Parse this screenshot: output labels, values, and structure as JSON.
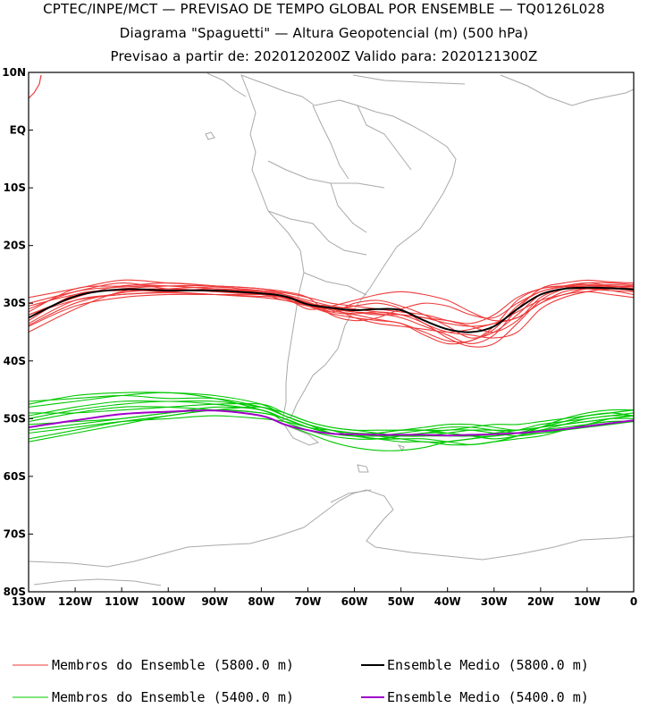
{
  "header": {
    "line1": "CPTEC/INPE/MCT — PREVISAO DE TEMPO GLOBAL POR ENSEMBLE — TQ0126L028",
    "line2": "Diagrama \"Spaguetti\" — Altura Geopotencial (m) (500 hPa)",
    "line3": "Previsao a partir de: 2020120200Z  Valido para: 2020121300Z"
  },
  "chart_data": {
    "type": "line",
    "title": "Diagrama Spaguetti — Altura Geopotencial (m) (500 hPa)",
    "x_axis": {
      "range": [
        -130,
        0
      ],
      "ticks": [
        -130,
        -120,
        -110,
        -100,
        -90,
        -80,
        -70,
        -60,
        -50,
        -40,
        -30,
        -20,
        -10,
        0
      ],
      "tick_labels": [
        "130W",
        "120W",
        "110W",
        "100W",
        "90W",
        "80W",
        "70W",
        "60W",
        "50W",
        "40W",
        "30W",
        "20W",
        "10W",
        "0"
      ]
    },
    "y_axis": {
      "range": [
        -80,
        10
      ],
      "ticks": [
        10,
        0,
        -10,
        -20,
        -30,
        -40,
        -50,
        -60,
        -70,
        -80
      ],
      "tick_labels": [
        "10N",
        "EQ",
        "10S",
        "20S",
        "30S",
        "40S",
        "50S",
        "60S",
        "70S",
        "80S"
      ]
    },
    "x": [
      -130,
      -120,
      -110,
      -100,
      -90,
      -80,
      -75,
      -70,
      -65,
      -60,
      -55,
      -50,
      -45,
      -40,
      -35,
      -30,
      -25,
      -20,
      -15,
      -10,
      -5,
      0
    ],
    "series": [
      {
        "name": "Ensemble Medio (5800.0 m)",
        "color": "#000000",
        "values": [
          -32.5,
          -28.8,
          -27.6,
          -27.8,
          -27.8,
          -28.3,
          -28.8,
          -30.2,
          -30.8,
          -31.2,
          -31.0,
          -31.2,
          -33.0,
          -34.5,
          -35.0,
          -34.0,
          -31.0,
          -28.5,
          -27.5,
          -27.3,
          -27.4,
          -27.6
        ]
      },
      {
        "name": "Ensemble Medio (5400.0 m)",
        "color": "#a000c8",
        "values": [
          -51.5,
          -50.3,
          -49.2,
          -48.8,
          -48.6,
          -49.5,
          -51.0,
          -52.0,
          -52.6,
          -52.7,
          -52.8,
          -52.8,
          -52.8,
          -52.9,
          -52.8,
          -52.7,
          -52.5,
          -52.2,
          -51.8,
          -51.3,
          -50.8,
          -50.3
        ]
      }
    ],
    "members_5800": [
      [
        -30.0,
        -28.0,
        -26.5,
        -27.5,
        -27.8,
        -28.5,
        -29.5,
        -30.0,
        -31.0,
        -31.5,
        -31.8,
        -32.5,
        -34.0,
        -35.5,
        -37.0,
        -35.5,
        -31.0,
        -27.5,
        -26.5,
        -26.0,
        -26.3,
        -26.5
      ],
      [
        -33.5,
        -29.5,
        -28.5,
        -28.2,
        -28.5,
        -28.8,
        -29.0,
        -30.0,
        -31.5,
        -32.0,
        -32.8,
        -33.5,
        -35.0,
        -36.5,
        -36.5,
        -34.0,
        -29.5,
        -27.5,
        -27.0,
        -27.5,
        -27.8,
        -28.0
      ],
      [
        -31.5,
        -27.5,
        -27.0,
        -26.5,
        -27.0,
        -27.5,
        -28.5,
        -30.5,
        -30.8,
        -32.5,
        -33.5,
        -34.0,
        -34.5,
        -35.0,
        -34.5,
        -33.5,
        -32.5,
        -30.0,
        -28.5,
        -28.0,
        -28.5,
        -29.0
      ],
      [
        -35.0,
        -31.0,
        -28.0,
        -27.5,
        -28.0,
        -28.5,
        -29.0,
        -30.2,
        -31.5,
        -30.0,
        -29.5,
        -30.5,
        -32.0,
        -34.0,
        -36.0,
        -35.0,
        -32.0,
        -28.5,
        -27.5,
        -27.0,
        -26.8,
        -27.0
      ],
      [
        -29.0,
        -27.5,
        -26.0,
        -26.5,
        -27.0,
        -28.0,
        -28.5,
        -29.5,
        -30.5,
        -31.5,
        -32.0,
        -32.0,
        -32.5,
        -33.5,
        -34.0,
        -33.5,
        -31.5,
        -29.5,
        -28.5,
        -27.5,
        -27.8,
        -28.5
      ],
      [
        -32.0,
        -29.0,
        -27.0,
        -27.0,
        -27.5,
        -28.0,
        -29.0,
        -31.0,
        -30.5,
        -29.5,
        -28.5,
        -28.0,
        -28.5,
        -29.5,
        -31.5,
        -33.0,
        -32.5,
        -30.0,
        -28.0,
        -27.5,
        -27.5,
        -27.5
      ],
      [
        -34.0,
        -30.5,
        -29.0,
        -28.5,
        -28.5,
        -28.5,
        -28.8,
        -29.8,
        -31.2,
        -31.8,
        -31.5,
        -32.0,
        -33.5,
        -36.0,
        -37.5,
        -37.0,
        -33.5,
        -29.5,
        -27.5,
        -26.5,
        -26.5,
        -26.8
      ],
      [
        -30.5,
        -28.5,
        -27.5,
        -27.0,
        -27.0,
        -27.5,
        -28.0,
        -29.0,
        -32.0,
        -33.0,
        -32.5,
        -31.0,
        -30.0,
        -30.5,
        -32.0,
        -32.5,
        -30.0,
        -28.0,
        -27.0,
        -26.5,
        -27.0,
        -27.5
      ],
      [
        -33.0,
        -28.5,
        -27.8,
        -28.0,
        -28.5,
        -29.0,
        -29.5,
        -30.5,
        -31.0,
        -30.5,
        -30.0,
        -31.0,
        -33.5,
        -35.0,
        -35.5,
        -36.0,
        -35.0,
        -31.0,
        -29.0,
        -28.0,
        -27.5,
        -27.8
      ],
      [
        -32.0,
        -29.5,
        -28.5,
        -28.0,
        -27.5,
        -28.0,
        -28.5,
        -30.0,
        -30.5,
        -31.0,
        -31.5,
        -32.0,
        -32.5,
        -33.0,
        -33.5,
        -32.0,
        -29.0,
        -27.5,
        -27.0,
        -26.8,
        -27.0,
        -27.5
      ],
      [
        -31.0,
        -28.0,
        -27.2,
        -27.0,
        -27.5,
        -28.2,
        -29.2,
        -30.5,
        -31.8,
        -32.5,
        -33.0,
        -33.5,
        -35.5,
        -37.0,
        -36.5,
        -34.5,
        -30.5,
        -28.0,
        -27.2,
        -27.0,
        -27.2,
        -27.0
      ],
      [
        -33.8,
        -30.0,
        -28.2,
        -27.5,
        -27.2,
        -27.8,
        -28.2,
        -29.0,
        -30.0,
        -30.5,
        -31.0,
        -31.5,
        -32.0,
        -33.0,
        -34.0,
        -35.0,
        -33.0,
        -29.0,
        -27.5,
        -27.0,
        -27.0,
        -27.2
      ]
    ],
    "members_5400": [
      [
        -53.5,
        -52.0,
        -50.5,
        -49.5,
        -48.5,
        -49.0,
        -50.0,
        -51.5,
        -52.5,
        -53.0,
        -53.5,
        -53.0,
        -52.5,
        -52.5,
        -53.0,
        -53.5,
        -53.0,
        -52.0,
        -51.0,
        -50.0,
        -49.5,
        -49.0
      ],
      [
        -50.0,
        -48.5,
        -47.5,
        -47.0,
        -47.5,
        -48.5,
        -50.0,
        -51.5,
        -52.0,
        -52.5,
        -53.0,
        -53.5,
        -54.0,
        -54.0,
        -53.5,
        -53.0,
        -52.5,
        -52.0,
        -51.5,
        -51.0,
        -50.5,
        -50.5
      ],
      [
        -47.0,
        -46.5,
        -46.0,
        -46.5,
        -46.5,
        -48.0,
        -49.5,
        -51.0,
        -52.5,
        -53.0,
        -52.5,
        -52.0,
        -51.5,
        -51.0,
        -51.0,
        -51.5,
        -52.0,
        -51.5,
        -50.5,
        -49.5,
        -49.0,
        -48.5
      ],
      [
        -52.0,
        -51.0,
        -50.0,
        -49.0,
        -48.0,
        -48.5,
        -50.5,
        -52.0,
        -53.0,
        -53.5,
        -53.5,
        -53.0,
        -52.5,
        -52.0,
        -52.0,
        -52.5,
        -53.0,
        -52.5,
        -52.0,
        -51.5,
        -51.0,
        -50.5
      ],
      [
        -48.0,
        -47.0,
        -46.0,
        -45.5,
        -46.5,
        -48.5,
        -50.0,
        -51.5,
        -52.5,
        -53.0,
        -53.5,
        -53.5,
        -53.5,
        -54.0,
        -54.5,
        -54.0,
        -53.0,
        -51.5,
        -50.0,
        -49.0,
        -48.5,
        -48.5
      ],
      [
        -54.0,
        -52.5,
        -51.0,
        -49.5,
        -48.5,
        -48.0,
        -49.5,
        -51.0,
        -52.0,
        -52.5,
        -52.5,
        -52.0,
        -52.0,
        -52.5,
        -53.0,
        -53.0,
        -52.5,
        -51.5,
        -50.5,
        -49.5,
        -49.0,
        -49.5
      ],
      [
        -49.0,
        -49.0,
        -48.5,
        -48.0,
        -47.5,
        -47.5,
        -49.0,
        -50.5,
        -51.5,
        -52.0,
        -52.5,
        -53.0,
        -53.0,
        -52.5,
        -52.0,
        -52.0,
        -52.0,
        -51.5,
        -51.0,
        -50.5,
        -50.0,
        -50.0
      ],
      [
        -51.0,
        -50.5,
        -50.0,
        -49.0,
        -48.5,
        -49.0,
        -50.0,
        -51.5,
        -52.5,
        -53.0,
        -53.0,
        -52.5,
        -52.0,
        -51.5,
        -51.5,
        -52.0,
        -52.5,
        -52.5,
        -52.0,
        -51.0,
        -50.0,
        -49.5
      ],
      [
        -47.5,
        -46.0,
        -45.5,
        -45.5,
        -46.0,
        -47.5,
        -49.5,
        -51.0,
        -52.0,
        -53.0,
        -53.5,
        -54.0,
        -54.0,
        -54.5,
        -54.5,
        -54.0,
        -53.5,
        -53.0,
        -52.0,
        -51.0,
        -50.5,
        -50.5
      ],
      [
        -52.5,
        -51.5,
        -50.5,
        -50.0,
        -49.5,
        -50.0,
        -50.5,
        -51.5,
        -52.5,
        -53.0,
        -53.0,
        -53.0,
        -53.0,
        -53.0,
        -53.0,
        -52.5,
        -52.0,
        -51.0,
        -50.5,
        -50.0,
        -49.5,
        -49.5
      ],
      [
        -50.5,
        -49.0,
        -48.0,
        -48.0,
        -48.5,
        -49.5,
        -51.0,
        -52.5,
        -54.0,
        -55.0,
        -55.5,
        -55.5,
        -55.0,
        -54.0,
        -53.5,
        -53.0,
        -52.5,
        -51.5,
        -51.0,
        -50.5,
        -50.0,
        -49.5
      ],
      [
        -49.5,
        -48.0,
        -47.0,
        -47.0,
        -47.0,
        -48.0,
        -49.0,
        -50.5,
        -51.5,
        -52.0,
        -52.0,
        -52.0,
        -52.0,
        -52.0,
        -51.5,
        -51.0,
        -51.0,
        -50.5,
        -50.0,
        -49.5,
        -49.0,
        -48.5
      ]
    ],
    "member_colors": {
      "m5800": "#ee3b3b",
      "m5400": "#00c800"
    },
    "legend": [
      {
        "label": "Membros do Ensemble (5800.0 m)",
        "color": "#ee3b3b",
        "line": "thin"
      },
      {
        "label": "Ensemble Medio (5800.0 m)",
        "color": "#000000",
        "line": "thick"
      },
      {
        "label": "Membros do Ensemble (5400.0 m)",
        "color": "#00c800",
        "line": "thin"
      },
      {
        "label": "Ensemble Medio (5400.0 m)",
        "color": "#a000c8",
        "line": "thick"
      }
    ],
    "legend_position": "bottom"
  }
}
